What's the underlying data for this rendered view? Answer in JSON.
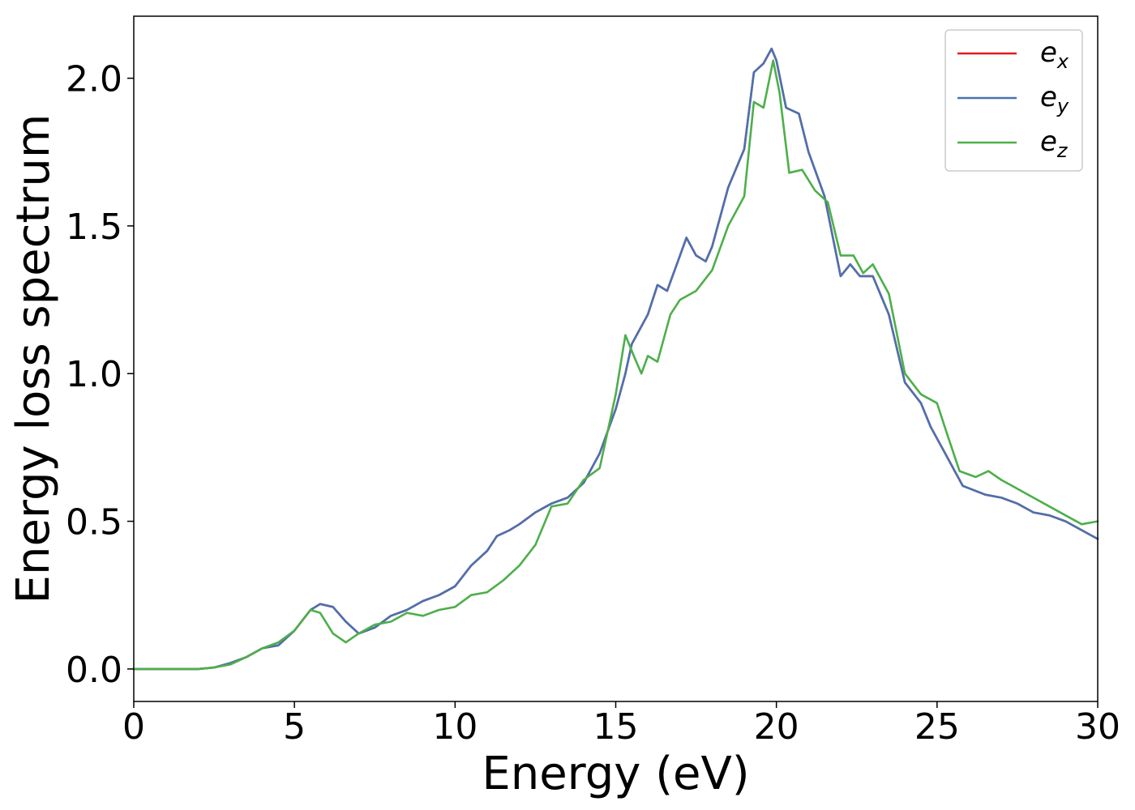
{
  "chart_data": {
    "type": "line",
    "title": "",
    "xlabel": "Energy (eV)",
    "ylabel": "Energy loss spectrum",
    "xlim": [
      0,
      30
    ],
    "ylim": [
      -0.11,
      2.21
    ],
    "xticks": [
      0,
      5,
      10,
      15,
      20,
      25,
      30
    ],
    "xtick_labels": [
      "0",
      "5",
      "10",
      "15",
      "20",
      "25",
      "30"
    ],
    "yticks": [
      0.0,
      0.5,
      1.0,
      1.5,
      2.0
    ],
    "ytick_labels": [
      "0.0",
      "0.5",
      "1.0",
      "1.5",
      "2.0"
    ],
    "grid": false,
    "legend_position": "top-right",
    "series": [
      {
        "name": "e",
        "subscript": "x",
        "color": "#e41a1c",
        "points": [
          [
            0,
            0.0
          ],
          [
            1,
            0.0
          ],
          [
            2,
            0.0
          ],
          [
            2.5,
            0.005
          ],
          [
            3,
            0.02
          ],
          [
            3.5,
            0.04
          ],
          [
            4,
            0.07
          ],
          [
            4.5,
            0.08
          ],
          [
            5,
            0.13
          ],
          [
            5.5,
            0.2
          ],
          [
            5.8,
            0.22
          ],
          [
            6.2,
            0.21
          ],
          [
            6.6,
            0.16
          ],
          [
            7,
            0.12
          ],
          [
            7.5,
            0.14
          ],
          [
            8,
            0.18
          ],
          [
            8.5,
            0.2
          ],
          [
            9,
            0.23
          ],
          [
            9.5,
            0.25
          ],
          [
            10,
            0.28
          ],
          [
            10.5,
            0.35
          ],
          [
            11,
            0.4
          ],
          [
            11.3,
            0.45
          ],
          [
            11.7,
            0.47
          ],
          [
            12,
            0.49
          ],
          [
            12.5,
            0.53
          ],
          [
            13,
            0.56
          ],
          [
            13.5,
            0.58
          ],
          [
            14,
            0.63
          ],
          [
            14.5,
            0.73
          ],
          [
            15,
            0.88
          ],
          [
            15.3,
            1.0
          ],
          [
            15.5,
            1.1
          ],
          [
            16,
            1.2
          ],
          [
            16.3,
            1.3
          ],
          [
            16.6,
            1.28
          ],
          [
            17,
            1.4
          ],
          [
            17.2,
            1.46
          ],
          [
            17.5,
            1.4
          ],
          [
            17.8,
            1.38
          ],
          [
            18,
            1.43
          ],
          [
            18.5,
            1.63
          ],
          [
            19,
            1.76
          ],
          [
            19.3,
            2.02
          ],
          [
            19.6,
            2.05
          ],
          [
            19.85,
            2.1
          ],
          [
            20,
            2.06
          ],
          [
            20.3,
            1.9
          ],
          [
            20.7,
            1.88
          ],
          [
            21,
            1.75
          ],
          [
            21.5,
            1.6
          ],
          [
            22,
            1.33
          ],
          [
            22.3,
            1.37
          ],
          [
            22.6,
            1.33
          ],
          [
            23,
            1.33
          ],
          [
            23.5,
            1.2
          ],
          [
            24,
            0.97
          ],
          [
            24.5,
            0.9
          ],
          [
            24.8,
            0.82
          ],
          [
            25.2,
            0.74
          ],
          [
            25.8,
            0.62
          ],
          [
            26.5,
            0.59
          ],
          [
            27,
            0.58
          ],
          [
            27.5,
            0.56
          ],
          [
            28,
            0.53
          ],
          [
            28.5,
            0.52
          ],
          [
            29,
            0.5
          ],
          [
            29.5,
            0.47
          ],
          [
            30,
            0.44
          ]
        ]
      },
      {
        "name": "e",
        "subscript": "y",
        "color": "#4a72b0",
        "points": [
          [
            0,
            0.0
          ],
          [
            1,
            0.0
          ],
          [
            2,
            0.0
          ],
          [
            2.5,
            0.005
          ],
          [
            3,
            0.02
          ],
          [
            3.5,
            0.04
          ],
          [
            4,
            0.07
          ],
          [
            4.5,
            0.08
          ],
          [
            5,
            0.13
          ],
          [
            5.5,
            0.2
          ],
          [
            5.8,
            0.22
          ],
          [
            6.2,
            0.21
          ],
          [
            6.6,
            0.16
          ],
          [
            7,
            0.12
          ],
          [
            7.5,
            0.14
          ],
          [
            8,
            0.18
          ],
          [
            8.5,
            0.2
          ],
          [
            9,
            0.23
          ],
          [
            9.5,
            0.25
          ],
          [
            10,
            0.28
          ],
          [
            10.5,
            0.35
          ],
          [
            11,
            0.4
          ],
          [
            11.3,
            0.45
          ],
          [
            11.7,
            0.47
          ],
          [
            12,
            0.49
          ],
          [
            12.5,
            0.53
          ],
          [
            13,
            0.56
          ],
          [
            13.5,
            0.58
          ],
          [
            14,
            0.63
          ],
          [
            14.5,
            0.73
          ],
          [
            15,
            0.88
          ],
          [
            15.3,
            1.0
          ],
          [
            15.5,
            1.1
          ],
          [
            16,
            1.2
          ],
          [
            16.3,
            1.3
          ],
          [
            16.6,
            1.28
          ],
          [
            17,
            1.4
          ],
          [
            17.2,
            1.46
          ],
          [
            17.5,
            1.4
          ],
          [
            17.8,
            1.38
          ],
          [
            18,
            1.43
          ],
          [
            18.5,
            1.63
          ],
          [
            19,
            1.76
          ],
          [
            19.3,
            2.02
          ],
          [
            19.6,
            2.05
          ],
          [
            19.85,
            2.1
          ],
          [
            20,
            2.06
          ],
          [
            20.3,
            1.9
          ],
          [
            20.7,
            1.88
          ],
          [
            21,
            1.75
          ],
          [
            21.5,
            1.6
          ],
          [
            22,
            1.33
          ],
          [
            22.3,
            1.37
          ],
          [
            22.6,
            1.33
          ],
          [
            23,
            1.33
          ],
          [
            23.5,
            1.2
          ],
          [
            24,
            0.97
          ],
          [
            24.5,
            0.9
          ],
          [
            24.8,
            0.82
          ],
          [
            25.2,
            0.74
          ],
          [
            25.8,
            0.62
          ],
          [
            26.5,
            0.59
          ],
          [
            27,
            0.58
          ],
          [
            27.5,
            0.56
          ],
          [
            28,
            0.53
          ],
          [
            28.5,
            0.52
          ],
          [
            29,
            0.5
          ],
          [
            29.5,
            0.47
          ],
          [
            30,
            0.44
          ]
        ]
      },
      {
        "name": "e",
        "subscript": "z",
        "color": "#4daf4a",
        "points": [
          [
            0,
            0.0
          ],
          [
            1,
            0.0
          ],
          [
            2,
            0.0
          ],
          [
            2.5,
            0.005
          ],
          [
            3,
            0.015
          ],
          [
            3.5,
            0.04
          ],
          [
            4,
            0.07
          ],
          [
            4.5,
            0.09
          ],
          [
            5,
            0.13
          ],
          [
            5.5,
            0.2
          ],
          [
            5.8,
            0.19
          ],
          [
            6.2,
            0.12
          ],
          [
            6.6,
            0.09
          ],
          [
            7,
            0.12
          ],
          [
            7.5,
            0.15
          ],
          [
            8,
            0.16
          ],
          [
            8.5,
            0.19
          ],
          [
            9,
            0.18
          ],
          [
            9.5,
            0.2
          ],
          [
            10,
            0.21
          ],
          [
            10.5,
            0.25
          ],
          [
            11,
            0.26
          ],
          [
            11.5,
            0.3
          ],
          [
            12,
            0.35
          ],
          [
            12.5,
            0.42
          ],
          [
            13,
            0.55
          ],
          [
            13.5,
            0.56
          ],
          [
            14,
            0.64
          ],
          [
            14.5,
            0.68
          ],
          [
            15,
            0.93
          ],
          [
            15.3,
            1.13
          ],
          [
            15.6,
            1.05
          ],
          [
            15.8,
            1.0
          ],
          [
            16,
            1.06
          ],
          [
            16.3,
            1.04
          ],
          [
            16.7,
            1.2
          ],
          [
            17,
            1.25
          ],
          [
            17.5,
            1.28
          ],
          [
            18,
            1.35
          ],
          [
            18.5,
            1.5
          ],
          [
            19,
            1.6
          ],
          [
            19.3,
            1.92
          ],
          [
            19.6,
            1.9
          ],
          [
            19.9,
            2.06
          ],
          [
            20.1,
            1.95
          ],
          [
            20.4,
            1.68
          ],
          [
            20.8,
            1.69
          ],
          [
            21.2,
            1.62
          ],
          [
            21.6,
            1.58
          ],
          [
            22,
            1.4
          ],
          [
            22.4,
            1.4
          ],
          [
            22.7,
            1.34
          ],
          [
            23,
            1.37
          ],
          [
            23.5,
            1.27
          ],
          [
            24,
            1.0
          ],
          [
            24.5,
            0.93
          ],
          [
            25,
            0.9
          ],
          [
            25.3,
            0.8
          ],
          [
            25.7,
            0.67
          ],
          [
            26.2,
            0.65
          ],
          [
            26.6,
            0.67
          ],
          [
            27,
            0.64
          ],
          [
            27.5,
            0.61
          ],
          [
            28,
            0.58
          ],
          [
            28.5,
            0.55
          ],
          [
            29,
            0.52
          ],
          [
            29.5,
            0.49
          ],
          [
            30,
            0.5
          ]
        ]
      }
    ]
  }
}
